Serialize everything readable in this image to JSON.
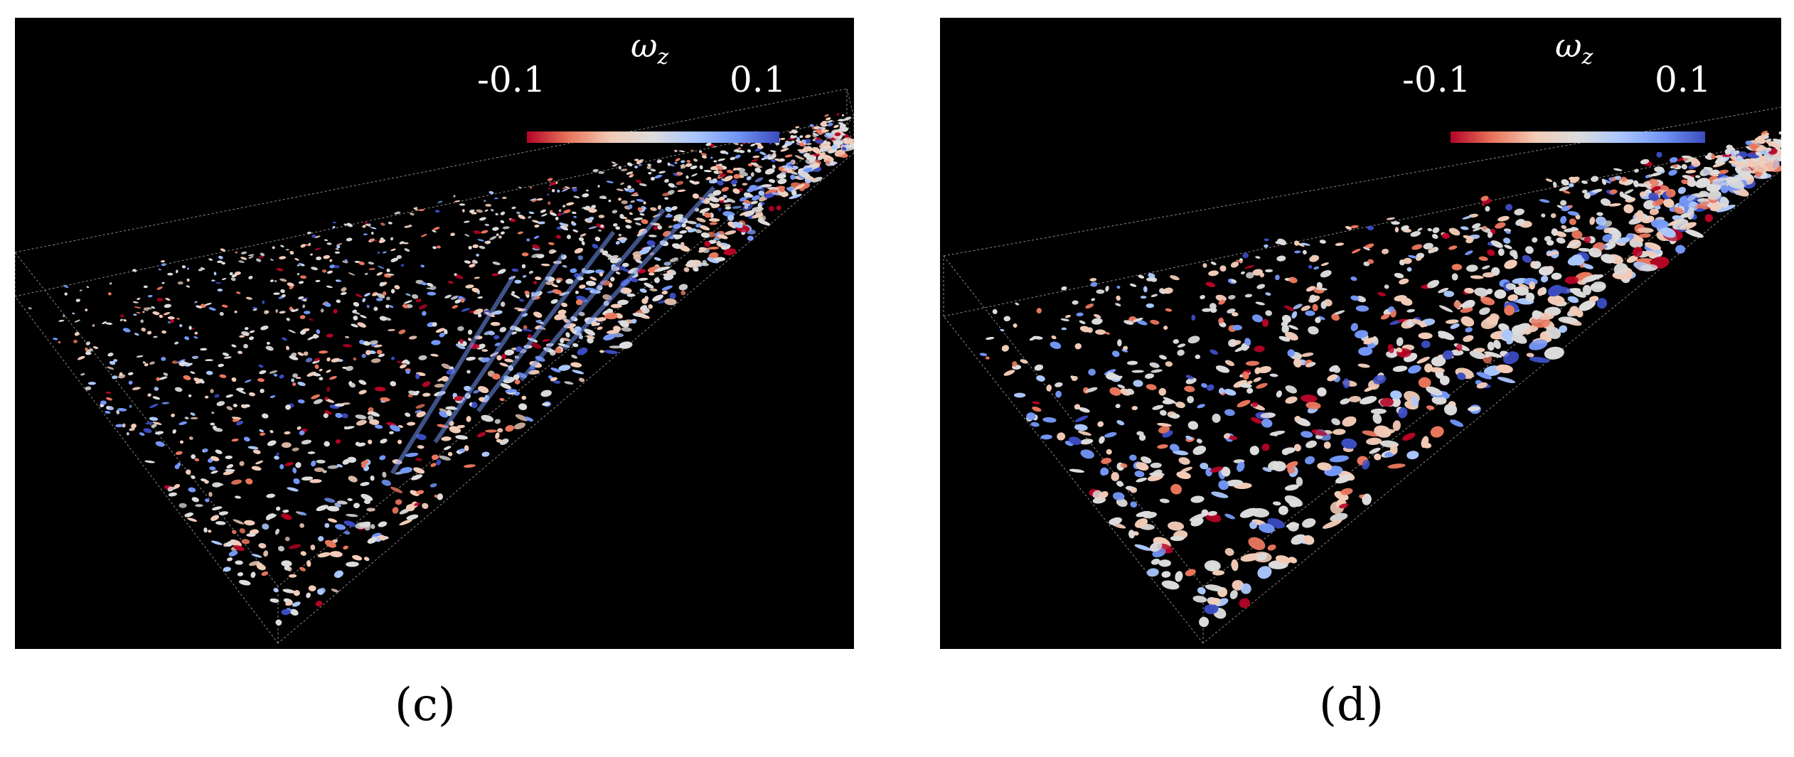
{
  "panels": [
    {
      "id": "c",
      "colorbar": {
        "title_symbol": "ω",
        "title_subscript": "z",
        "min_label": "-0.1",
        "max_label": "0.1",
        "colormap": [
          "#b40426",
          "#e8765c",
          "#f2cbb7",
          "#dddcdc",
          "#aac7fd",
          "#7396f5",
          "#3b4cc0"
        ]
      },
      "caption": "(c)"
    },
    {
      "id": "d",
      "colorbar": {
        "title_symbol": "ω",
        "title_subscript": "z",
        "min_label": "-0.1",
        "max_label": "0.1",
        "colormap": [
          "#b40426",
          "#e8765c",
          "#f2cbb7",
          "#dddcdc",
          "#aac7fd",
          "#7396f5",
          "#3b4cc0"
        ]
      },
      "caption": "(d)"
    }
  ]
}
